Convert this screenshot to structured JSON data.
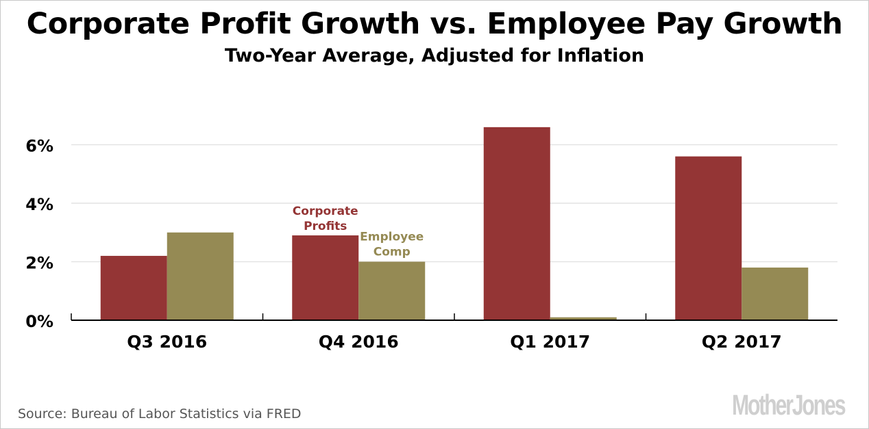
{
  "chart_data": {
    "type": "bar",
    "title": "Corporate Profit Growth vs. Employee Pay Growth",
    "subtitle": "Two-Year Average, Adjusted for Inflation",
    "xlabel": "",
    "ylabel": "",
    "categories": [
      "Q3 2016",
      "Q4 2016",
      "Q1 2017",
      "Q2 2017"
    ],
    "series": [
      {
        "name": "Corporate Profits",
        "label_lines": [
          "Corporate",
          "Profits"
        ],
        "color": "#943535",
        "values": [
          2.2,
          2.9,
          6.6,
          5.6
        ]
      },
      {
        "name": "Employee Comp",
        "label_lines": [
          "Employee",
          "Comp"
        ],
        "color": "#958a54",
        "values": [
          3.0,
          2.0,
          0.1,
          1.8
        ]
      }
    ],
    "yticks": [
      0,
      2,
      4,
      6
    ],
    "ytick_labels": [
      "0%",
      "2%",
      "4%",
      "6%"
    ],
    "ylim": [
      0,
      7
    ],
    "grid": true,
    "legend": "inline-annotations-on-Q4-2016"
  },
  "footer": {
    "source": "Source: Bureau of Labor Statistics via FRED",
    "logo": "MotherJones"
  }
}
